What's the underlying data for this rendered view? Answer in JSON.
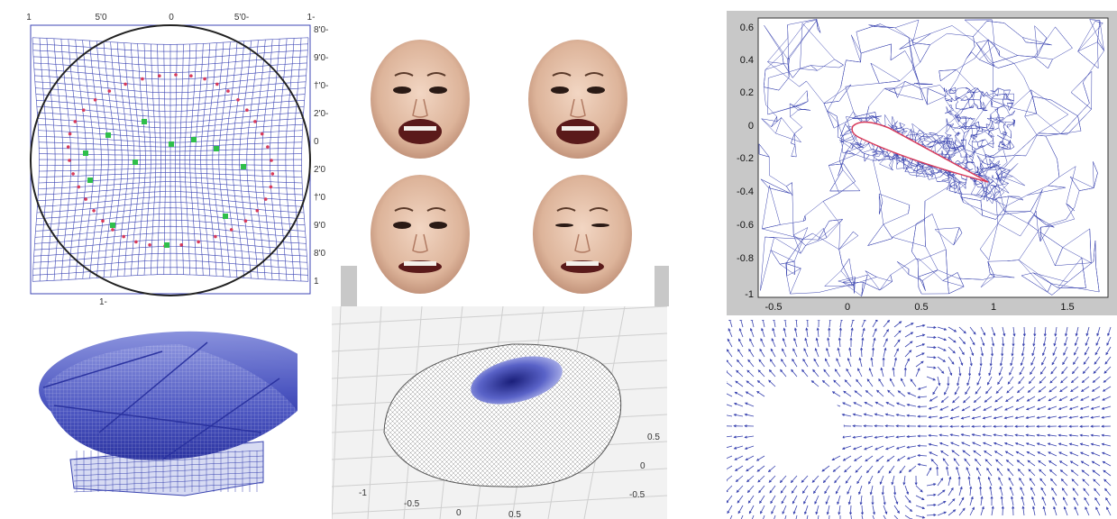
{
  "panels": {
    "warp_grid": {
      "top_ticks": [
        "1",
        "5'0",
        "0",
        "5'0-",
        "1-"
      ],
      "right_ticks": [
        "8'0-",
        "9'0-",
        "†'0-",
        "2'0-",
        "0",
        "2'0",
        "†'0",
        "9'0",
        "8'0",
        "1"
      ],
      "bottom_tick": "1-"
    },
    "faces": {
      "count": 4
    },
    "airfoil_mesh": {
      "y_ticks": [
        "0.6",
        "0.4",
        "0.2",
        "0",
        "-0.2",
        "-0.4",
        "-0.6",
        "-0.8",
        "-1"
      ],
      "x_ticks": [
        "-0.5",
        "0",
        "0.5",
        "1",
        "1.5"
      ]
    },
    "dome_surface": {
      "x_ticks": [
        "-1",
        "-0.5",
        "0",
        "0.5"
      ],
      "y_ticks": [
        "0.5",
        "0",
        "-0.5"
      ]
    },
    "colors": {
      "grid_blue": "#3c45b4",
      "mesh_blue": "#3a44b0",
      "marker_red": "#d83a5a",
      "marker_green": "#2fbf4a",
      "frame_gray": "#c8c8c8"
    }
  }
}
